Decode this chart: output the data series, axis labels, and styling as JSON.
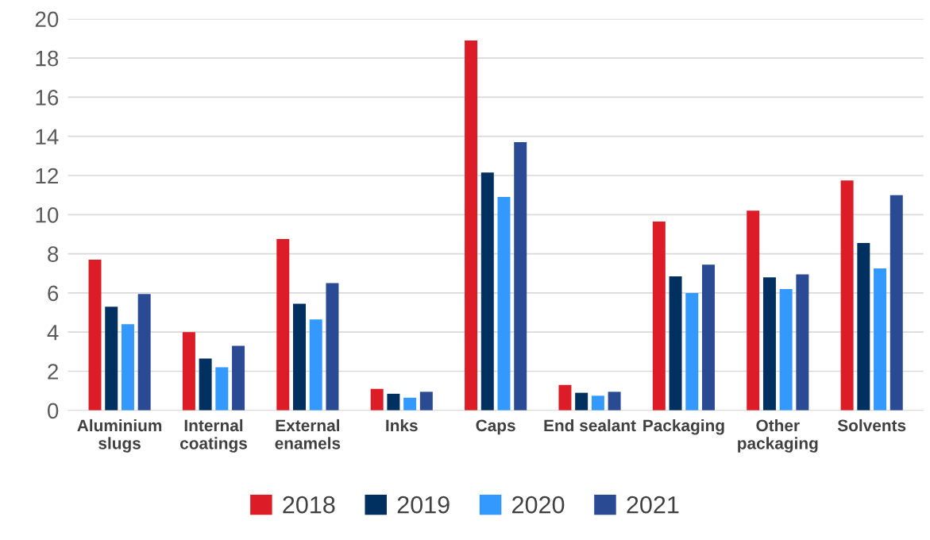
{
  "chart_data": {
    "type": "bar",
    "categories": [
      "Aluminium\nslugs",
      "Internal\ncoatings",
      "External\nenamels",
      "Inks",
      "Caps",
      "End sealant",
      "Packaging",
      "Other\npackaging",
      "Solvents"
    ],
    "series": [
      {
        "name": "2018",
        "color": "#dc1c26",
        "values": [
          7.7,
          4.0,
          8.75,
          1.1,
          18.9,
          1.3,
          9.65,
          10.2,
          11.75
        ]
      },
      {
        "name": "2019",
        "color": "#003060",
        "values": [
          5.3,
          2.65,
          5.45,
          0.85,
          12.15,
          0.9,
          6.85,
          6.8,
          8.55
        ]
      },
      {
        "name": "2020",
        "color": "#3399ff",
        "values": [
          4.4,
          2.2,
          4.65,
          0.65,
          10.9,
          0.75,
          6.0,
          6.2,
          7.25
        ]
      },
      {
        "name": "2021",
        "color": "#2a4a94",
        "values": [
          5.95,
          3.3,
          6.5,
          0.95,
          13.7,
          0.95,
          7.45,
          6.95,
          11.0
        ]
      }
    ],
    "ylim": [
      0,
      20
    ],
    "yticks": [
      0,
      2,
      4,
      6,
      8,
      10,
      12,
      14,
      16,
      18,
      20
    ],
    "grid": "y",
    "legend": "bottom"
  }
}
